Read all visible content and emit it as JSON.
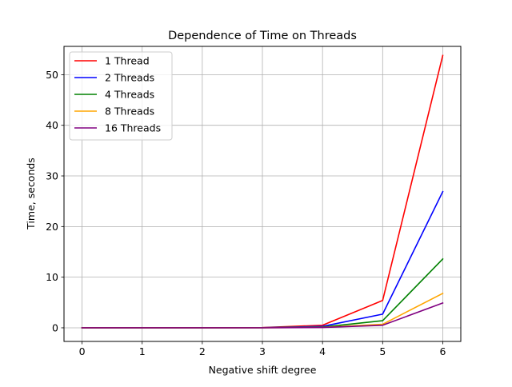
{
  "chart_data": {
    "type": "line",
    "title": "Dependence of Time on Threads",
    "xlabel": "Negative shift degree",
    "ylabel": "Time, seconds",
    "x": [
      0,
      1,
      2,
      3,
      4,
      5,
      6
    ],
    "xlim": [
      -0.3,
      6.3
    ],
    "ylim": [
      -2.69,
      55.59
    ],
    "xticks": [
      0,
      1,
      2,
      3,
      4,
      5,
      6
    ],
    "yticks": [
      0,
      10,
      20,
      30,
      40,
      50
    ],
    "grid": true,
    "legend_position": "top-left",
    "series": [
      {
        "name": "1 Thread",
        "color": "#ff0000",
        "values": [
          0.0,
          0.0,
          0.0,
          0.05,
          0.5,
          5.4,
          53.8
        ]
      },
      {
        "name": "2 Threads",
        "color": "#0000ff",
        "values": [
          0.0,
          0.0,
          0.0,
          0.03,
          0.28,
          2.7,
          26.9
        ]
      },
      {
        "name": "4 Threads",
        "color": "#008000",
        "values": [
          0.0,
          0.0,
          0.0,
          0.02,
          0.15,
          1.4,
          13.6
        ]
      },
      {
        "name": "8 Threads",
        "color": "#ffa500",
        "values": [
          0.0,
          0.0,
          0.0,
          0.01,
          0.08,
          0.7,
          6.8
        ]
      },
      {
        "name": "16 Threads",
        "color": "#800080",
        "values": [
          0.0,
          0.0,
          0.0,
          0.01,
          0.06,
          0.5,
          4.9
        ]
      }
    ]
  }
}
